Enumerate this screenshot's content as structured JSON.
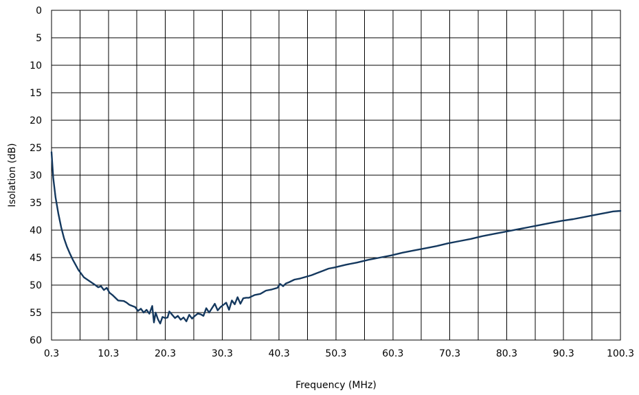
{
  "chart_data": {
    "type": "line",
    "title": "",
    "xlabel": "Frequency (MHz)",
    "ylabel": "Isolation (dB)",
    "xlim": [
      0.3,
      100.3
    ],
    "ylim": [
      0,
      60
    ],
    "y_inverted": true,
    "grid": true,
    "line_color": "#14385e",
    "x_tick_labels": [
      "0.3",
      "10.3",
      "20.3",
      "30.3",
      "40.3",
      "50.3",
      "60.3",
      "70.3",
      "80.3",
      "90.3",
      "100.3"
    ],
    "x_tick_values": [
      0.3,
      10.3,
      20.3,
      30.3,
      40.3,
      50.3,
      60.3,
      70.3,
      80.3,
      90.3,
      100.3
    ],
    "x_minor_grid_values": [
      5.3,
      15.3,
      25.3,
      35.3,
      45.3,
      55.3,
      65.3,
      75.3,
      85.3,
      95.3
    ],
    "y_tick_labels": [
      "0",
      "5",
      "10",
      "15",
      "20",
      "25",
      "30",
      "35",
      "40",
      "45",
      "50",
      "55",
      "60"
    ],
    "y_tick_values": [
      0,
      5,
      10,
      15,
      20,
      25,
      30,
      35,
      40,
      45,
      50,
      55,
      60
    ],
    "series": [
      {
        "x": [
          0.3,
          0.6,
          1.0,
          1.5,
          2.0,
          2.5,
          3.0,
          3.5,
          4.0,
          5.0,
          6.0,
          7.0,
          8.0,
          8.5,
          9.0,
          9.5,
          10.0,
          10.5,
          11.0,
          12.0,
          13.0,
          13.5,
          14.0,
          15.0,
          15.5,
          16.0,
          16.5,
          17.0,
          17.5,
          18.0,
          18.3,
          18.6,
          19.0,
          19.4,
          19.8,
          20.3,
          20.7,
          21.0,
          21.5,
          22.0,
          22.5,
          23.0,
          23.5,
          24.0,
          24.5,
          25.0,
          25.5,
          26.0,
          26.5,
          27.0,
          27.5,
          28.0,
          28.5,
          29.0,
          29.5,
          30.0,
          30.5,
          31.0,
          31.5,
          32.0,
          32.5,
          33.0,
          33.5,
          34.0,
          34.5,
          35.0,
          36.0,
          37.0,
          38.0,
          39.0,
          40.0,
          40.5,
          41.0,
          41.5,
          42.0,
          43.0,
          44.0,
          45.0,
          46.0,
          47.0,
          48.0,
          49.0,
          50.0,
          52.0,
          54.0,
          56.0,
          58.0,
          60.0,
          62.0,
          64.0,
          66.0,
          68.0,
          70.0,
          72.0,
          74.0,
          76.0,
          78.0,
          80.0,
          82.0,
          84.0,
          86.0,
          88.0,
          90.0,
          92.0,
          94.0,
          96.0,
          98.0,
          99.0,
          100.3
        ],
        "y": [
          25.8,
          30.5,
          34.0,
          37.0,
          39.5,
          41.5,
          43.0,
          44.2,
          45.3,
          47.2,
          48.6,
          49.3,
          50.0,
          50.4,
          50.2,
          50.9,
          50.5,
          51.4,
          51.8,
          52.8,
          52.9,
          53.2,
          53.6,
          54.0,
          54.7,
          54.3,
          55.0,
          54.5,
          55.2,
          53.8,
          56.8,
          55.0,
          56.2,
          57.0,
          55.8,
          56.0,
          55.9,
          54.8,
          55.4,
          56.0,
          55.6,
          56.3,
          55.9,
          56.6,
          55.4,
          56.1,
          55.6,
          55.2,
          55.3,
          55.6,
          54.2,
          55.0,
          54.2,
          53.4,
          54.6,
          54.0,
          53.6,
          53.2,
          54.5,
          52.8,
          53.5,
          52.2,
          53.4,
          52.4,
          52.3,
          52.3,
          51.8,
          51.6,
          51.0,
          50.8,
          50.5,
          49.8,
          50.2,
          49.7,
          49.5,
          49.0,
          48.8,
          48.5,
          48.2,
          47.8,
          47.4,
          47.0,
          46.8,
          46.3,
          45.9,
          45.4,
          45.0,
          44.6,
          44.1,
          43.7,
          43.3,
          42.9,
          42.4,
          42.0,
          41.6,
          41.1,
          40.7,
          40.3,
          39.9,
          39.5,
          39.1,
          38.7,
          38.3,
          38.0,
          37.6,
          37.2,
          36.8,
          36.6,
          36.5
        ]
      }
    ]
  }
}
